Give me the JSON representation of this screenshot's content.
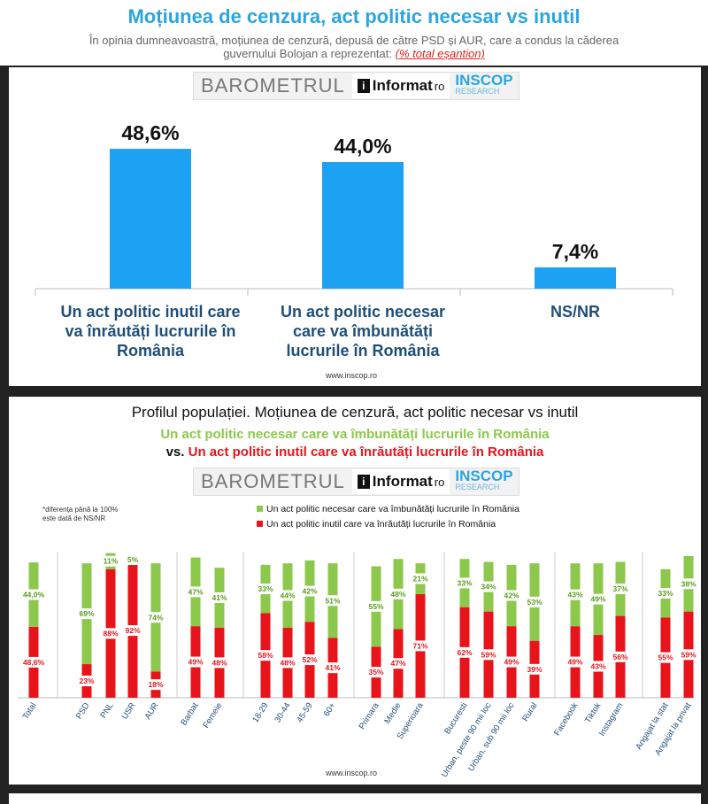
{
  "header": {
    "title": "Moțiunea de cenzura, act politic necesar vs inutil",
    "subtitle_line1": "În opinia dumneavoastră, moțiunea de cenzură, depusă de către PSD și AUR, care a condus la căderea",
    "subtitle_line2": "guvernului Bolojan a reprezentat:",
    "subtitle_link": "(% total eșantion)"
  },
  "logo": {
    "barometrul": "BAROMETRUL",
    "informat": "Informat",
    "informat_suffix": "ro",
    "inscop": "INSCOP",
    "research": "RESEARCH"
  },
  "footer_url": "www.inscop.ro",
  "colors": {
    "blue": "#1da1f2",
    "green": "#8cc84b",
    "red": "#e8141b",
    "title_blue": "#2aa5e0"
  },
  "chart_data": [
    {
      "type": "bar",
      "categories": [
        "Un act politic inutil care va înrăutăți lucrurile în România",
        "Un act politic necesar care va îmbunătăți lucrurile în România",
        "NS/NR"
      ],
      "category_lines": [
        [
          "Un act politic inutil care",
          "va înrăutăți lucrurile în",
          "România"
        ],
        [
          "Un act politic necesar",
          "care va îmbunătăți",
          "lucrurile în România"
        ],
        [
          "NS/NR"
        ]
      ],
      "values": [
        48.6,
        44.0,
        7.4
      ],
      "value_labels": [
        "48,6%",
        "44,0%",
        "7,4%"
      ]
    },
    {
      "type": "bar",
      "stacked": true,
      "title": "Profilul populației. Moțiunea de cenzură, act politic necesar vs inutil",
      "subtitle_green": "Un act politic necesar care va îmbunătăți lucrurile în România",
      "subtitle_vs": "vs.",
      "subtitle_red": "Un act politic inutil care va înrăutăți lucrurile în România",
      "note_line1": "*diferența până la 100%",
      "note_line2": "este dată de NS/NR",
      "legend_position": "top",
      "categories": [
        "Total",
        "PSD",
        "PNL",
        "USR",
        "AUR",
        "Barbat",
        "Femeie",
        "18-29",
        "30-44",
        "45-59",
        "60+",
        "Primara",
        "Medie",
        "Superioara",
        "Bucuresti",
        "Urban, peste 90 mii loc",
        "Urban, sub 90 mii loc",
        "Rural",
        "Facebook",
        "Tiktok",
        "Instagram",
        "Angajat la stat",
        "Angajat la privat"
      ],
      "groups": [
        [
          0
        ],
        [
          1,
          2,
          3,
          4
        ],
        [
          5,
          6
        ],
        [
          7,
          8,
          9,
          10
        ],
        [
          11,
          12,
          13
        ],
        [
          14,
          15,
          16,
          17
        ],
        [
          18,
          19,
          20
        ],
        [
          21,
          22
        ]
      ],
      "series": [
        {
          "name": "Un act politic inutil care va înrăutăți lucrurile în România",
          "values": [
            48.6,
            23,
            88,
            92,
            18,
            49,
            48,
            58,
            48,
            52,
            41,
            35,
            47,
            71,
            62,
            59,
            49,
            39,
            49,
            43,
            56,
            55,
            59
          ],
          "labels": [
            "48,6%",
            "23%",
            "88%",
            "92%",
            "18%",
            "49%",
            "48%",
            "58%",
            "48%",
            "52%",
            "41%",
            "35%",
            "47%",
            "71%",
            "62%",
            "59%",
            "49%",
            "39%",
            "49%",
            "43%",
            "56%",
            "55%",
            "59%"
          ]
        },
        {
          "name": "Un act politic necesar care va îmbunătăți lucrurile în România",
          "values": [
            44.0,
            69,
            11,
            5,
            74,
            47,
            41,
            33,
            44,
            42,
            51,
            55,
            48,
            21,
            33,
            34,
            42,
            53,
            43,
            49,
            37,
            33,
            38
          ],
          "labels": [
            "44,0%",
            "69%",
            "11%",
            "5%",
            "74%",
            "47%",
            "41%",
            "33%",
            "44%",
            "42%",
            "51%",
            "55%",
            "48%",
            "21%",
            "33%",
            "34%",
            "42%",
            "53%",
            "43%",
            "49%",
            "37%",
            "33%",
            "38%"
          ]
        }
      ]
    }
  ]
}
